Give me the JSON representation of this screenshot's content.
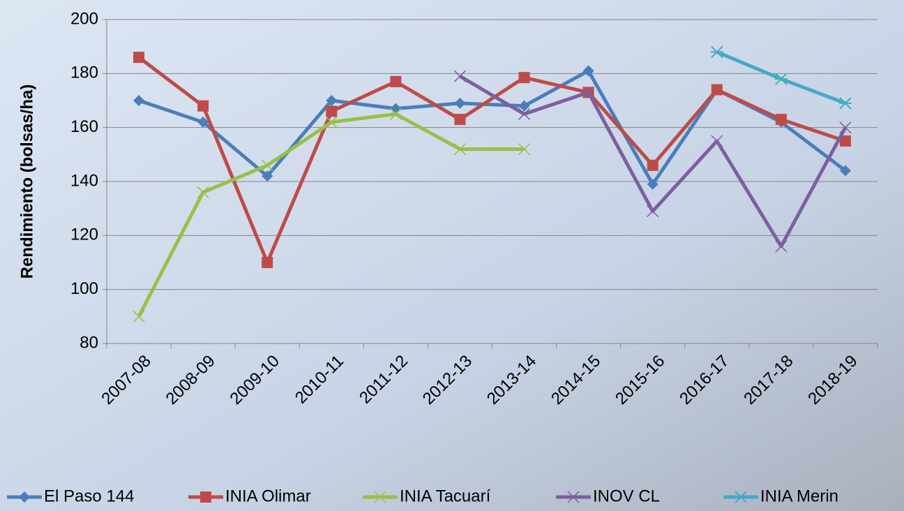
{
  "chart_data": {
    "type": "line",
    "y_label": "Rendimiento (bolsas/ha)",
    "categories": [
      "2007-08",
      "2008-09",
      "2009-10",
      "2010-11",
      "2011-12",
      "2012-13",
      "2013-14",
      "2014-15",
      "2015-16",
      "2016-17",
      "2017-18",
      "2018-19"
    ],
    "series": [
      {
        "name": "El Paso 144",
        "color": "#4a7ebb",
        "marker": "diamond",
        "values": [
          170,
          162,
          142,
          170,
          167,
          169,
          168,
          181,
          139,
          174,
          162,
          144
        ]
      },
      {
        "name": "INIA Olimar",
        "color": "#be4b48",
        "marker": "square",
        "values": [
          186,
          168,
          110,
          166,
          177,
          163,
          178.5,
          173,
          146,
          174,
          163,
          155
        ]
      },
      {
        "name": "INIA Tacuarí",
        "color": "#98c047",
        "marker": "x",
        "values": [
          90,
          136,
          146,
          162,
          165,
          152,
          152,
          null,
          null,
          null,
          null,
          null
        ]
      },
      {
        "name": "INOV CL",
        "color": "#7d5fa0",
        "marker": "x",
        "values": [
          null,
          null,
          null,
          null,
          null,
          179,
          165,
          173,
          129,
          155,
          116,
          160
        ]
      },
      {
        "name": "INIA Merin",
        "color": "#46aac5",
        "marker": "star",
        "values": [
          null,
          null,
          null,
          null,
          null,
          null,
          null,
          null,
          null,
          188,
          178,
          169
        ]
      }
    ],
    "ylim": [
      80,
      200
    ],
    "yticks": [
      80,
      100,
      120,
      140,
      160,
      180,
      200
    ],
    "grid": true,
    "legend": "bottom"
  }
}
